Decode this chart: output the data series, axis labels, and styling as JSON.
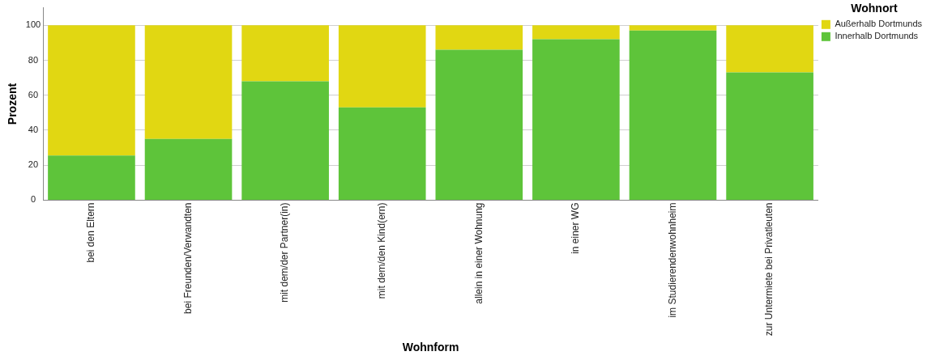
{
  "chart_data": {
    "type": "bar",
    "stacked": true,
    "xlabel": "Wohnform",
    "ylabel": "Prozent",
    "legend_title": "Wohnort",
    "categories": [
      "bei den Eltern",
      "bei Freunden/Verwandten",
      "mit dem/der Partner(in)",
      "mit dem/den Kind(ern)",
      "allein in einer Wohnung",
      "in einer WG",
      "im Studierendenwohnheim",
      "zur Untermiete bei Privatleuten"
    ],
    "series": [
      {
        "name": "Innerhalb Dortmunds",
        "color": "#5ec43a",
        "values": [
          25.5,
          35,
          68,
          53,
          86,
          92,
          97,
          73
        ]
      },
      {
        "name": "Außerhalb Dortmunds",
        "color": "#e1d712",
        "values": [
          74.5,
          65,
          32,
          47,
          14,
          8,
          3,
          27
        ]
      }
    ],
    "ylim": [
      0,
      110
    ],
    "yticks": [
      0,
      20,
      40,
      60,
      80,
      100
    ],
    "grid": "y",
    "legend": "top right"
  }
}
